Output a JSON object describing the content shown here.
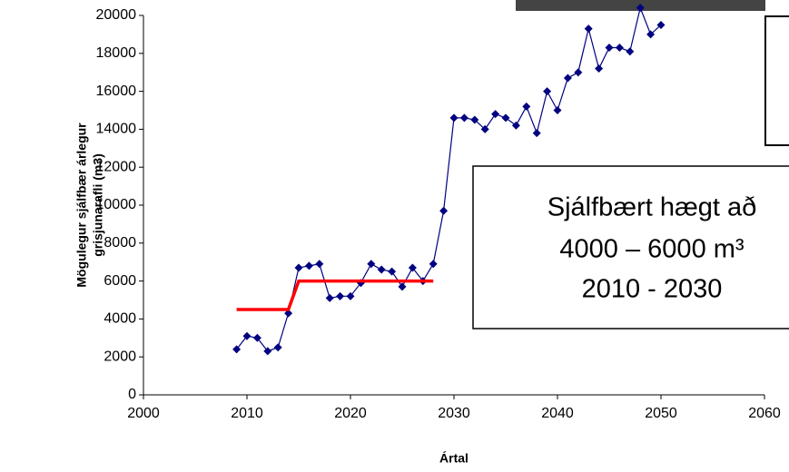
{
  "chart_data": {
    "type": "line",
    "xlabel": "Ártal",
    "ylabel": [
      "Mögulegur sjálfbær árlegur",
      "grisjunarafli (m3)"
    ],
    "xlim": [
      2000,
      2060
    ],
    "xticks": [
      2000,
      2010,
      2020,
      2030,
      2040,
      2050,
      2060
    ],
    "ylim": [
      0,
      20000
    ],
    "yticks": [
      0,
      2000,
      4000,
      6000,
      8000,
      10000,
      12000,
      14000,
      16000,
      18000,
      20000
    ],
    "grid": false,
    "series": [
      {
        "color": "#000080",
        "marker": "diamond",
        "x": [
          2009,
          2010,
          2011,
          2012,
          2013,
          2014,
          2015,
          2016,
          2017,
          2018,
          2019,
          2020,
          2021,
          2022,
          2023,
          2024,
          2025,
          2026,
          2027,
          2028,
          2029,
          2030,
          2031,
          2032,
          2033,
          2034,
          2035,
          2036,
          2037,
          2038,
          2039,
          2040,
          2041,
          2042,
          2043,
          2044,
          2045,
          2046,
          2047,
          2048,
          2049,
          2050
        ],
        "values": [
          2400,
          3100,
          3000,
          2300,
          2500,
          4300,
          6700,
          6800,
          6900,
          5100,
          5200,
          5200,
          5900,
          6900,
          6600,
          6500,
          5700,
          6700,
          6000,
          6900,
          9700,
          14600,
          14600,
          14500,
          14000,
          14800,
          14600,
          14200,
          15200,
          13800,
          16000,
          15000,
          16700,
          17000,
          19300,
          17200,
          18300,
          18300,
          18100,
          20400,
          19000,
          19500
        ]
      },
      {
        "color": "#ff0000",
        "marker": "none",
        "x": [
          2009,
          2014,
          2015,
          2028
        ],
        "values": [
          4500,
          4500,
          6000,
          6000
        ]
      }
    ],
    "annotation": [
      "Sjálfbært hægt að",
      "4000 – 6000 m³",
      "2010 - 2030"
    ]
  }
}
